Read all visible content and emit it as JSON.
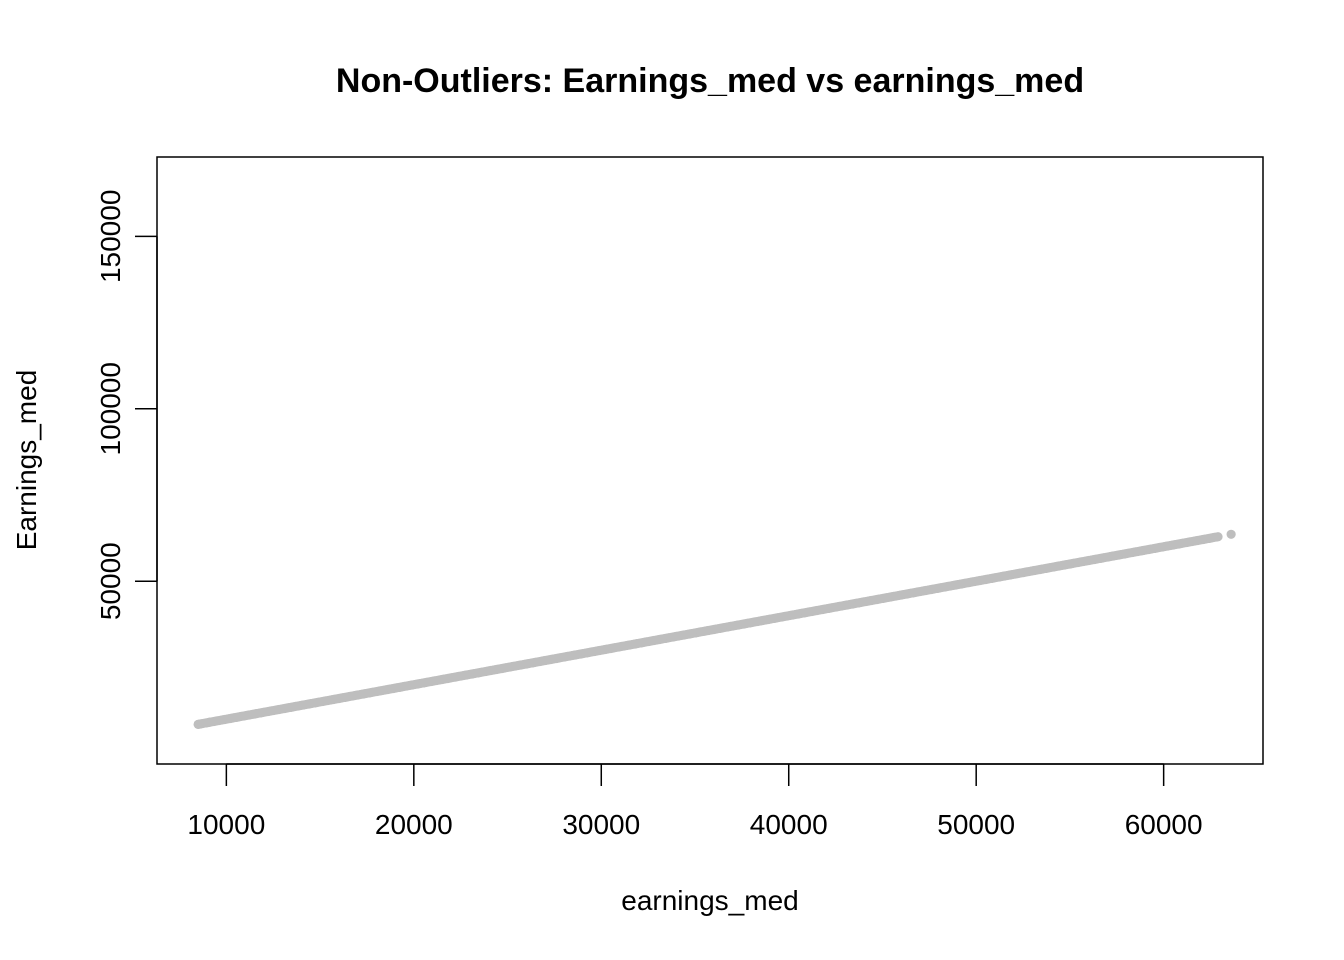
{
  "chart_data": {
    "type": "scatter",
    "title": "Non-Outliers: Earnings_med vs earnings_med",
    "xlabel": "earnings_med",
    "ylabel": "Earnings_med",
    "xlim": [
      6300,
      65300
    ],
    "ylim": [
      -3000,
      173000
    ],
    "x_ticks": [
      10000,
      20000,
      30000,
      40000,
      50000,
      60000
    ],
    "x_tick_labels": [
      "10000",
      "20000",
      "30000",
      "40000",
      "50000",
      "60000"
    ],
    "y_ticks": [
      50000,
      100000,
      150000
    ],
    "y_tick_labels": [
      "50000",
      "100000",
      "150000"
    ],
    "grid": false,
    "point_color": "#BEBEBE",
    "series": [
      {
        "x_start": 8500,
        "x_end": 62900,
        "step": 100,
        "relation": "y = x",
        "extra_points": [
          [
            8500,
            8500
          ],
          [
            9100,
            9100
          ],
          [
            63600,
            63600
          ]
        ]
      }
    ]
  }
}
